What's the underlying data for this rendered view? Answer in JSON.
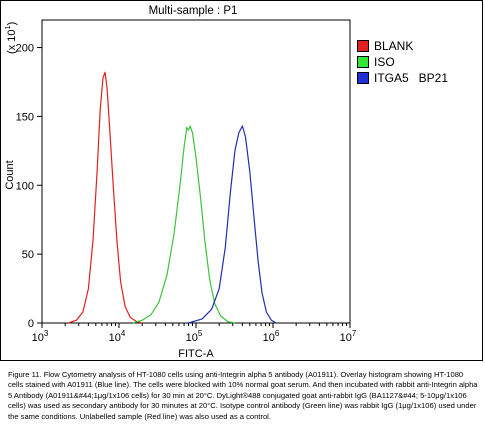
{
  "chart_data": {
    "type": "line",
    "title": "Multi-sample : P1",
    "xlabel": "FITC-A",
    "ylabel": "Count",
    "y_multiplier_label": "(x 10",
    "y_multiplier_exp": "1",
    "x_scale": "log",
    "xlim": [
      1000,
      10000000
    ],
    "ylim": [
      0,
      220
    ],
    "x_ticks": [
      {
        "base": "10",
        "exp": "3",
        "value": 1000
      },
      {
        "base": "10",
        "exp": "4",
        "value": 10000
      },
      {
        "base": "10",
        "exp": "5",
        "value": 100000
      },
      {
        "base": "10",
        "exp": "6",
        "value": 1000000
      },
      {
        "base": "10",
        "exp": "7",
        "value": 10000000
      }
    ],
    "y_ticks": [
      "0",
      "50",
      "100",
      "150",
      "200"
    ],
    "grid": false,
    "legend_position": "top-right",
    "series": [
      {
        "name": "BLANK",
        "color": "#e02020",
        "swatch": "#e02020",
        "points": [
          [
            2200,
            0
          ],
          [
            2800,
            2
          ],
          [
            3400,
            8
          ],
          [
            4000,
            25
          ],
          [
            4600,
            60
          ],
          [
            5200,
            110
          ],
          [
            5700,
            155
          ],
          [
            6200,
            178
          ],
          [
            6600,
            182
          ],
          [
            7000,
            170
          ],
          [
            7600,
            140
          ],
          [
            8400,
            100
          ],
          [
            9400,
            60
          ],
          [
            10500,
            30
          ],
          [
            12000,
            12
          ],
          [
            14000,
            4
          ],
          [
            17000,
            1
          ],
          [
            20000,
            0
          ]
        ]
      },
      {
        "name": "ISO",
        "color": "#3ec23e",
        "swatch": "#33e633",
        "points": [
          [
            15000,
            0
          ],
          [
            20000,
            2
          ],
          [
            26000,
            6
          ],
          [
            33000,
            15
          ],
          [
            42000,
            35
          ],
          [
            52000,
            65
          ],
          [
            62000,
            100
          ],
          [
            70000,
            128
          ],
          [
            76000,
            142
          ],
          [
            80000,
            140
          ],
          [
            84000,
            143
          ],
          [
            90000,
            138
          ],
          [
            100000,
            120
          ],
          [
            115000,
            90
          ],
          [
            130000,
            60
          ],
          [
            150000,
            32
          ],
          [
            175000,
            14
          ],
          [
            210000,
            5
          ],
          [
            260000,
            1
          ],
          [
            320000,
            0
          ]
        ]
      },
      {
        "name": "ITGA5   BP21",
        "color": "#1f2fb0",
        "swatch": "#1f2fd6",
        "points": [
          [
            80000,
            0
          ],
          [
            120000,
            3
          ],
          [
            160000,
            10
          ],
          [
            200000,
            25
          ],
          [
            240000,
            55
          ],
          [
            280000,
            95
          ],
          [
            320000,
            125
          ],
          [
            360000,
            138
          ],
          [
            400000,
            143
          ],
          [
            440000,
            135
          ],
          [
            500000,
            110
          ],
          [
            570000,
            75
          ],
          [
            640000,
            45
          ],
          [
            720000,
            22
          ],
          [
            820000,
            8
          ],
          [
            950000,
            2
          ],
          [
            1100000,
            0
          ]
        ]
      }
    ]
  },
  "caption": "Figure 11. Flow Cytometry analysis of HT-1080 cells using anti-Integrin alpha 5 antibody (A01911). Overlay histogram showing HT-1080 cells stained with A01911 (Blue line). The cells were blocked with 10% normal goat serum. And then incubated with rabbit anti-Integrin alpha 5 Antibody (A01911&#44;1μg/1x106 cells) for 30 min at 20°C. DyLight®488 conjugated goat anti-rabbit IgG (BA1127&#44; 5-10μg/1x106 cells) was used as secondary antibody for 30 minutes at 20°C. Isotype control antibody (Green line) was rabbit IgG (1μg/1x106) used under the same conditions. Unlabelled sample (Red line) was also used as a control."
}
